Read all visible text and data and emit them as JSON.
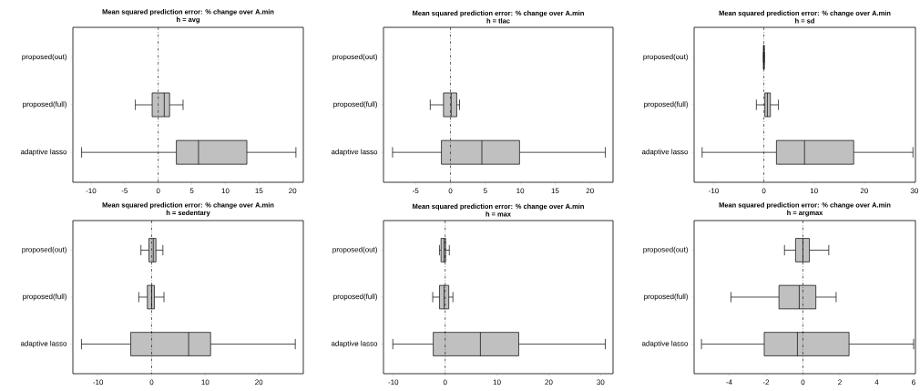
{
  "chart_data": [
    {
      "type": "box",
      "title": "Mean squared prediction error: % change over A.min",
      "subtitle": "h = avg",
      "orientation": "horizontal",
      "color": "#c0c0c0",
      "categories": [
        "proposed(out)",
        "proposed(full)",
        "adaptive lasso"
      ],
      "boxes": [
        null,
        {
          "low": -3.4,
          "q1": -0.9,
          "median": 0.9,
          "q3": 1.7,
          "high": 3.7
        },
        {
          "low": -11.4,
          "q1": 2.7,
          "median": 6.0,
          "q3": 13.2,
          "high": 20.5
        }
      ],
      "xlim": [
        -12.7,
        21.6
      ],
      "xticks": [
        -10,
        -5,
        0,
        5,
        10,
        15,
        20
      ],
      "ref_lines": [
        {
          "axis": "x",
          "value": 0,
          "line_style": "dashed"
        }
      ]
    },
    {
      "type": "box",
      "title": "Mean squared prediction error: % change over A.min",
      "subtitle": "h = tlac",
      "orientation": "horizontal",
      "color": "#c0c0c0",
      "categories": [
        "proposed(out)",
        "proposed(full)",
        "adaptive lasso"
      ],
      "boxes": [
        null,
        {
          "low": -2.9,
          "q1": -1.0,
          "median": 0.1,
          "q3": 0.9,
          "high": 1.3
        },
        {
          "low": -8.3,
          "q1": -1.3,
          "median": 4.5,
          "q3": 9.9,
          "high": 22.2
        }
      ],
      "xlim": [
        -9.6,
        23.3
      ],
      "xticks": [
        -5,
        0,
        5,
        10,
        15,
        20
      ],
      "ref_lines": [
        {
          "axis": "x",
          "value": 0,
          "line_style": "dashed"
        }
      ]
    },
    {
      "type": "box",
      "title": "Mean squared prediction error: % change over A.min",
      "subtitle": "h = sd",
      "orientation": "horizontal",
      "color": "#c0c0c0",
      "categories": [
        "proposed(out)",
        "proposed(full)",
        "adaptive lasso"
      ],
      "boxes": [
        {
          "low": -0.1,
          "q1": -0.1,
          "median": 0,
          "q3": 0.1,
          "high": 0.1
        },
        {
          "low": -1.5,
          "q1": 0.2,
          "median": 0.7,
          "q3": 1.3,
          "high": 2.9
        },
        {
          "low": -12.3,
          "q1": 2.5,
          "median": 8.1,
          "q3": 17.9,
          "high": 29.7
        }
      ],
      "xlim": [
        -13.9,
        30.2
      ],
      "xticks": [
        -10,
        0,
        10,
        20,
        30
      ],
      "ref_lines": [
        {
          "axis": "x",
          "value": 0,
          "line_style": "dashed"
        }
      ]
    },
    {
      "type": "box",
      "title": "Mean squared prediction error: % change over A.min",
      "subtitle": "h = sedentary",
      "orientation": "horizontal",
      "color": "#c0c0c0",
      "categories": [
        "proposed(out)",
        "proposed(full)",
        "adaptive lasso"
      ],
      "boxes": [
        {
          "low": -2.0,
          "q1": -0.5,
          "median": 0.3,
          "q3": 0.8,
          "high": 2.1
        },
        {
          "low": -2.4,
          "q1": -0.8,
          "median": 0.0,
          "q3": 0.5,
          "high": 2.3
        },
        {
          "low": -13.1,
          "q1": -3.9,
          "median": 6.9,
          "q3": 11.0,
          "high": 26.8
        }
      ],
      "xlim": [
        -14.7,
        28.3
      ],
      "xticks": [
        -10,
        0,
        10,
        20
      ],
      "ref_lines": [
        {
          "axis": "x",
          "value": 0,
          "line_style": "dashed"
        }
      ]
    },
    {
      "type": "box",
      "title": "Mean squared prediction error: % change over A.min",
      "subtitle": "h = max",
      "orientation": "horizontal",
      "color": "#c0c0c0",
      "categories": [
        "proposed(out)",
        "proposed(full)",
        "adaptive lasso"
      ],
      "boxes": [
        {
          "low": -1.1,
          "q1": -0.8,
          "median": -0.2,
          "q3": 0.1,
          "high": 0.8
        },
        {
          "low": -2.4,
          "q1": -1.1,
          "median": -0.2,
          "q3": 0.7,
          "high": 1.5
        },
        {
          "low": -10.1,
          "q1": -2.3,
          "median": 6.8,
          "q3": 14.2,
          "high": 30.9
        }
      ],
      "xlim": [
        -11.9,
        32.4
      ],
      "xticks": [
        -10,
        0,
        10,
        20,
        30
      ],
      "ref_lines": [
        {
          "axis": "x",
          "value": 0,
          "line_style": "dashed"
        }
      ]
    },
    {
      "type": "box",
      "title": "Mean squared prediction error: % change over A.min",
      "subtitle": "h = argmax",
      "orientation": "horizontal",
      "color": "#c0c0c0",
      "categories": [
        "proposed(out)",
        "proposed(full)",
        "adaptive lasso"
      ],
      "boxes": [
        {
          "low": -1.0,
          "q1": -0.4,
          "median": 0.0,
          "q3": 0.35,
          "high": 1.4
        },
        {
          "low": -3.9,
          "q1": -1.3,
          "median": -0.2,
          "q3": 0.7,
          "high": 1.8
        },
        {
          "low": -5.5,
          "q1": -2.1,
          "median": -0.3,
          "q3": 2.5,
          "high": 6.0
        }
      ],
      "xlim": [
        -5.9,
        6.1
      ],
      "xticks": [
        -4,
        -2,
        0,
        2,
        4,
        6
      ],
      "ref_lines": [
        {
          "axis": "x",
          "value": 0,
          "line_style": "dashed"
        }
      ]
    }
  ]
}
